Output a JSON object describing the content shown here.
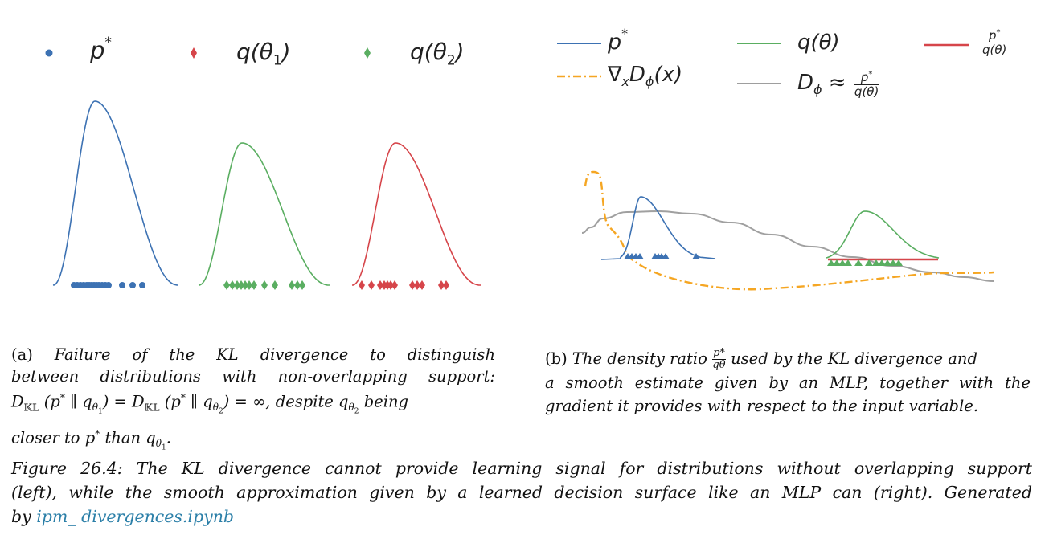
{
  "colors": {
    "p_star": "#3d72b3",
    "q_theta1": "#d6454a",
    "q_theta2": "#5aae61",
    "gradient": "#f5a623",
    "d_phi": "#9e9e9e",
    "link": "#2b7fa8"
  },
  "panel_a": {
    "legend": [
      {
        "label": "p",
        "sup": "*",
        "color": "#3d72b3",
        "marker": "dot"
      },
      {
        "label": "q(θ",
        "sub": "1",
        "tail": ")",
        "color": "#d6454a",
        "marker": "diamond"
      },
      {
        "label": "q(θ",
        "sub": "2",
        "tail": ")",
        "color": "#5aae61",
        "marker": "diamond"
      }
    ],
    "caption": {
      "tag": "(a)",
      "line1": "Failure of the KL divergence to distinguish",
      "line2": "between distributions with non-overlapping support:",
      "eq_D": "D",
      "eq_KL": "𝕂𝕃",
      "eq_p": "p",
      "eq_star": "*",
      "eq_par": "∥",
      "eq_q": "q",
      "eq_theta1": "θ",
      "eq_1": "1",
      "eq_2": "2",
      "eq_inf": "= ∞, despite",
      "eq_tail": "being",
      "line4a": "closer to",
      "line4b": "than"
    }
  },
  "panel_b": {
    "legend": [
      {
        "label": "p*",
        "color": "#3d72b3",
        "style": "solid"
      },
      {
        "label": "q(θ)",
        "color": "#5aae61",
        "style": "solid"
      },
      {
        "label": "p*/q(θ)",
        "color": "#d6454a",
        "style": "solid"
      },
      {
        "label": "∇xDϕ(x)",
        "color": "#f5a623",
        "style": "dashdot"
      },
      {
        "label": "Dϕ ≈ p*/q(θ)",
        "color": "#9e9e9e",
        "style": "solid"
      }
    ],
    "legend_text": {
      "p": "p",
      "star": "*",
      "q_theta": "q(θ)",
      "ratio_num": "p",
      "ratio_den": "q(θ)",
      "nabla": "∇",
      "x": "x",
      "D": "D",
      "phi": "ϕ",
      "x_arg": "(x)",
      "approx": "≈"
    },
    "caption": {
      "tag": "(b)",
      "line1a": "The density ratio",
      "frac_num": "p*",
      "frac_den": "qθ",
      "line1b": "used by the KL divergence and",
      "line2": "a smooth estimate given by an MLP, together with the",
      "line3": "gradient it provides with respect to the input variable."
    }
  },
  "figure_caption": {
    "line1": "Figure 26.4: The KL divergence cannot provide learning signal for distributions without overlapping support",
    "line2": "(left), while the smooth approximation given by a learned decision surface like an MLP can (right). Generated",
    "line3_prefix": "by",
    "link_text": "ipm_ divergences.ipynb"
  }
}
